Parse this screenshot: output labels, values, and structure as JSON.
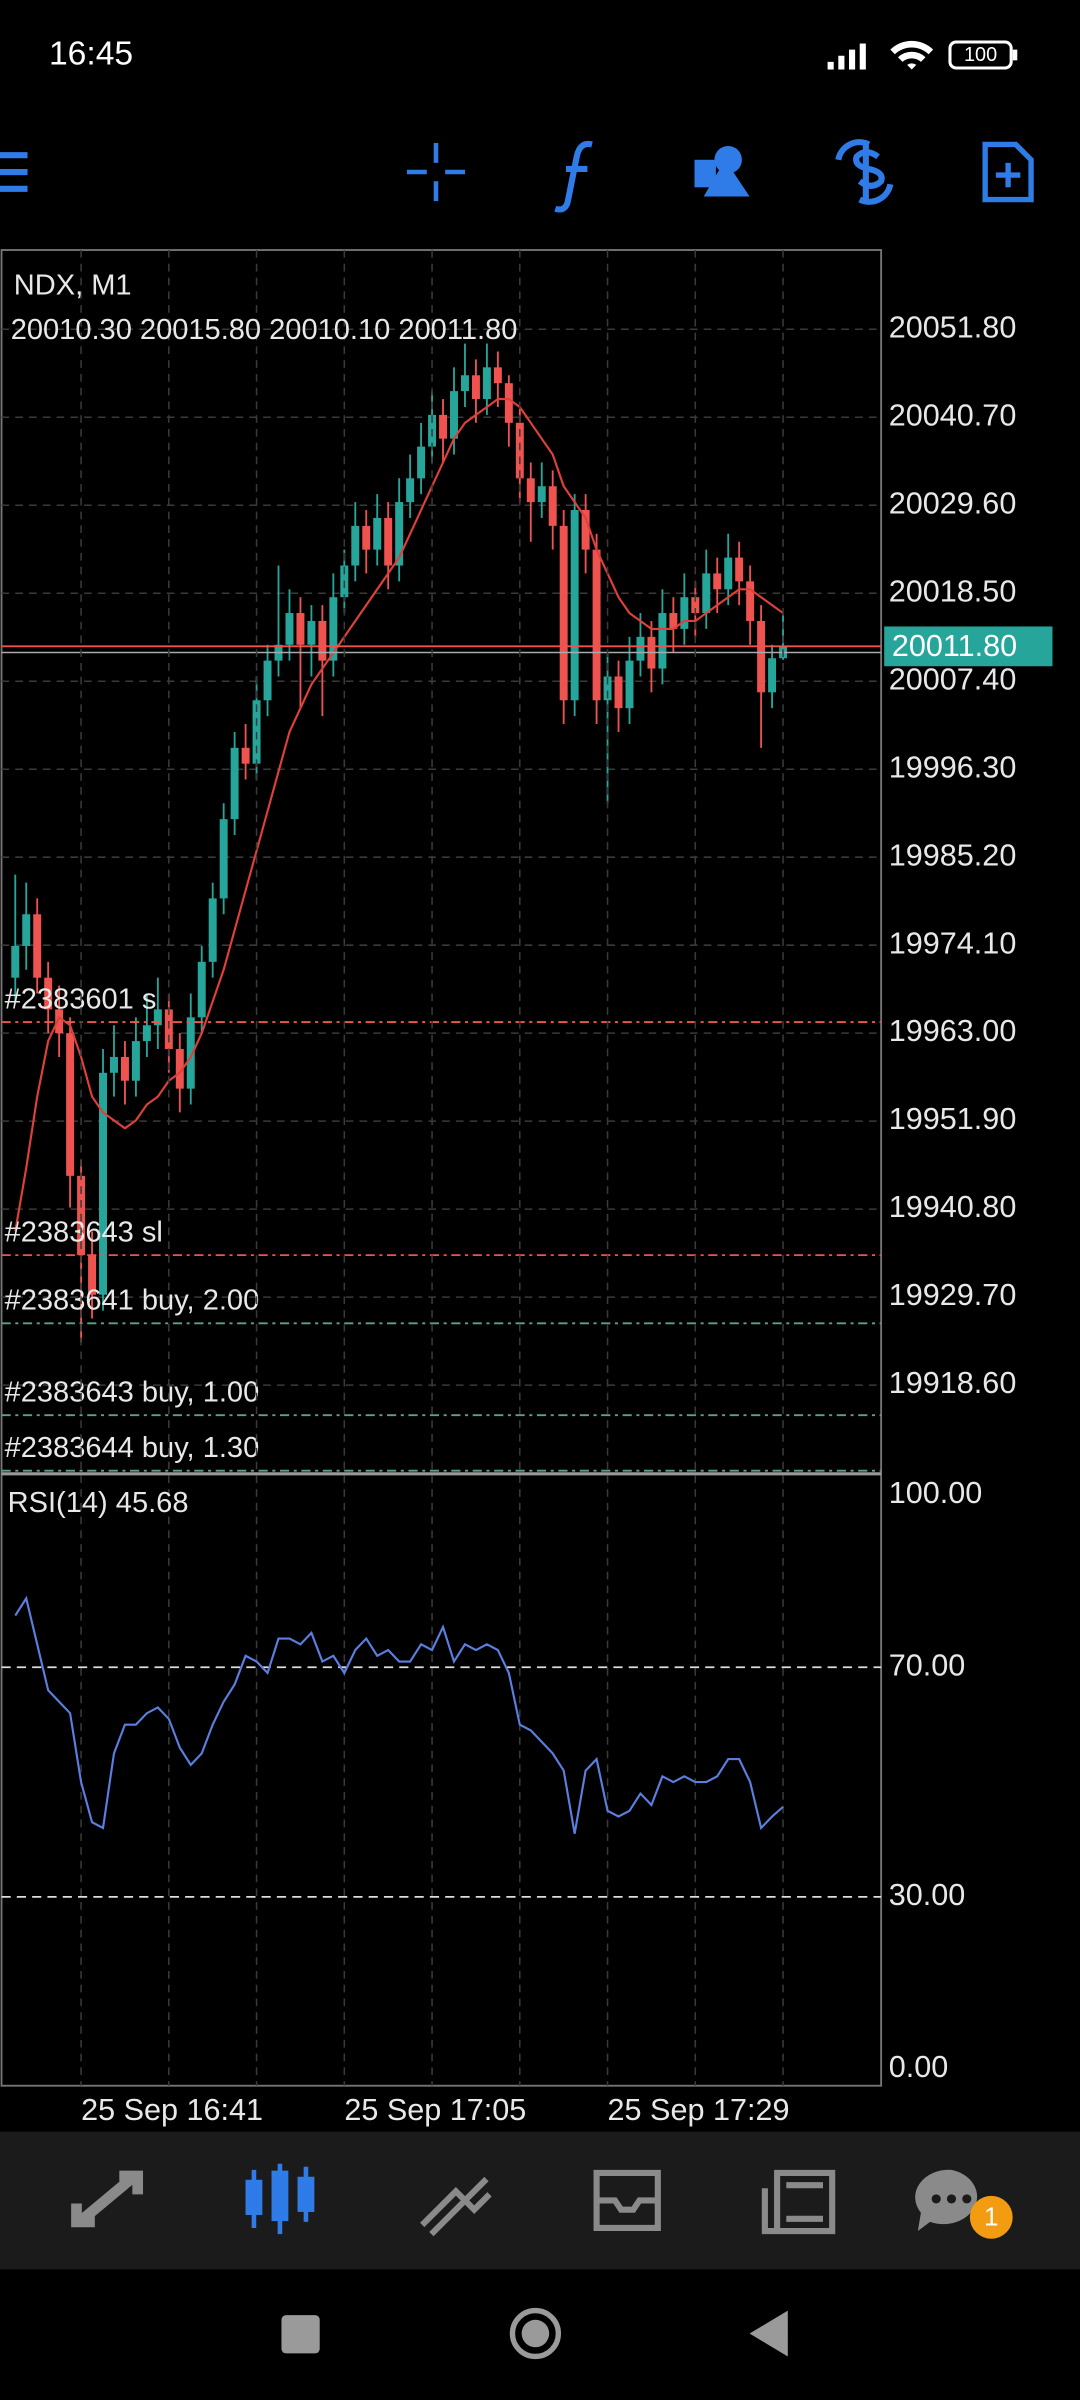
{
  "status_bar": {
    "time": "16:45",
    "battery": "100"
  },
  "chart_data": [
    {
      "type": "candlestick",
      "title": "NDX, M1",
      "subtitle": "20010.30 20015.80 20010.10 20011.80",
      "up_color": "#26a69a",
      "down_color": "#ef5350",
      "grid": true,
      "categories": [
        null,
        null,
        null,
        null,
        null,
        null,
        "25 Sep 16:41",
        null,
        null,
        null,
        null,
        null,
        null,
        null,
        null,
        null,
        null,
        null,
        null,
        null,
        null,
        null,
        null,
        null,
        null,
        null,
        null,
        null,
        null,
        null,
        "25 Sep 17:05",
        null,
        null,
        null,
        null,
        null,
        null,
        null,
        null,
        null,
        null,
        null,
        null,
        null,
        null,
        null,
        null,
        null,
        null,
        null,
        null,
        null,
        null,
        null,
        "25 Sep 17:29",
        null,
        null,
        null,
        null,
        null,
        null,
        null,
        null,
        null,
        null,
        null,
        null,
        null,
        null,
        null,
        null
      ],
      "candles": [
        [
          19970,
          19983,
          19967,
          19974
        ],
        [
          19974,
          19982,
          19971,
          19978
        ],
        [
          19978,
          19980,
          19968,
          19970
        ],
        [
          19970,
          19972,
          19963,
          19966
        ],
        [
          19966,
          19969,
          19960,
          19963
        ],
        [
          19963,
          19965,
          19941,
          19945
        ],
        [
          19945,
          19947,
          19924,
          19935
        ],
        [
          19935,
          19938,
          19927,
          19930
        ],
        [
          19930,
          19961,
          19928,
          19958
        ],
        [
          19958,
          19964,
          19955,
          19960
        ],
        [
          19960,
          19962,
          19954,
          19957
        ],
        [
          19957,
          19965,
          19955,
          19962
        ],
        [
          19962,
          19968,
          19960,
          19964
        ],
        [
          19964,
          19970,
          19961,
          19966
        ],
        [
          19966,
          19968,
          19958,
          19961
        ],
        [
          19961,
          19963,
          19953,
          19956
        ],
        [
          19956,
          19968,
          19954,
          19965
        ],
        [
          19965,
          19974,
          19963,
          19972
        ],
        [
          19972,
          19982,
          19970,
          19980
        ],
        [
          19980,
          19992,
          19978,
          19990
        ],
        [
          19990,
          20001,
          19988,
          19999
        ],
        [
          19999,
          20002,
          19995,
          19997
        ],
        [
          19997,
          20008,
          19995,
          20005
        ],
        [
          20005,
          20012,
          20003,
          20010
        ],
        [
          20010,
          20022,
          20008,
          20012
        ],
        [
          20012,
          20019,
          20010,
          20016
        ],
        [
          20016,
          20018,
          20004,
          20012
        ],
        [
          20012,
          20017,
          20008,
          20015
        ],
        [
          20015,
          20017,
          20003,
          20010
        ],
        [
          20010,
          20021,
          20008,
          20018
        ],
        [
          20018,
          20024,
          20016,
          20022
        ],
        [
          20022,
          20030,
          20020,
          20027
        ],
        [
          20027,
          20029,
          20021,
          20024
        ],
        [
          20024,
          20031,
          20022,
          20028
        ],
        [
          20028,
          20030,
          20019,
          20022
        ],
        [
          20022,
          20033,
          20020,
          20030
        ],
        [
          20030,
          20036,
          20028,
          20033
        ],
        [
          20033,
          20040,
          20031,
          20037
        ],
        [
          20037,
          20044,
          20035,
          20041
        ],
        [
          20041,
          20043,
          20035,
          20038
        ],
        [
          20038,
          20047,
          20036,
          20044
        ],
        [
          20044,
          20050,
          20042,
          20046
        ],
        [
          20046,
          20048,
          20040,
          20043
        ],
        [
          20043,
          20050,
          20041,
          20047
        ],
        [
          20047,
          20049,
          20042,
          20045
        ],
        [
          20045,
          20046,
          20037,
          20040
        ],
        [
          20040,
          20042,
          20030,
          20033
        ],
        [
          20033,
          20035,
          20025,
          20030
        ],
        [
          20030,
          20035,
          20028,
          20032
        ],
        [
          20032,
          20034,
          20024,
          20027
        ],
        [
          20027,
          20029,
          20002,
          20005
        ],
        [
          20005,
          20031,
          20003,
          20029
        ],
        [
          20029,
          20031,
          20021,
          20024
        ],
        [
          20024,
          20026,
          20002,
          20005
        ],
        [
          20005,
          20011,
          19992,
          20008
        ],
        [
          20008,
          20010,
          20001,
          20004
        ],
        [
          20004,
          20013,
          20002,
          20010
        ],
        [
          20010,
          20016,
          20008,
          20013
        ],
        [
          20013,
          20015,
          20006,
          20009
        ],
        [
          20009,
          20019,
          20007,
          20016
        ],
        [
          20016,
          20018,
          20011,
          20014
        ],
        [
          20014,
          20021,
          20012,
          20018
        ],
        [
          20018,
          20020,
          20013,
          20016
        ],
        [
          20016,
          20024,
          20014,
          20021
        ],
        [
          20021,
          20023,
          20016,
          20019
        ],
        [
          20019,
          20026,
          20017,
          20023
        ],
        [
          20023,
          20025,
          20017,
          20020
        ],
        [
          20020,
          20022,
          20012,
          20015
        ],
        [
          20015,
          20017,
          19999,
          20006
        ],
        [
          20006,
          20012,
          20004,
          20010.3
        ],
        [
          20010.3,
          20015.8,
          20010.1,
          20011.8
        ]
      ],
      "ma": {
        "color": "#e0403a",
        "values": [
          19938,
          19946,
          19955,
          19962,
          19965,
          19964,
          19960,
          19955,
          19953,
          19952,
          19951,
          19952,
          19954,
          19955,
          19957,
          19958,
          19960,
          19963,
          19967,
          19971,
          19976,
          19981,
          19986,
          19991,
          19996,
          20001,
          20004,
          20007,
          20009,
          20011,
          20013,
          20015,
          20017,
          20019,
          20021,
          20023,
          20026,
          20029,
          20032,
          20035,
          20038,
          20040,
          20041,
          20042,
          20043,
          20043,
          20042,
          20040,
          20038,
          20036,
          20032,
          20030,
          20028,
          20024,
          20021,
          20018,
          20016,
          20015,
          20014,
          20014,
          20014,
          20015,
          20015,
          20016,
          20017,
          20018,
          20019,
          20019,
          20018,
          20017,
          20016
        ]
      },
      "current_price": {
        "value": 20011.8,
        "label": "20011.80",
        "color": "#ef5350",
        "box_color": "#26a69a"
      },
      "levels": [
        {
          "label": "#2383601 s",
          "value": 19964.4,
          "color": "#ef5350"
        },
        {
          "label": "#2383643 sl",
          "value": 19935.0,
          "color": "#ef5350"
        },
        {
          "label": "#2383641 buy, 2.00",
          "value": 19926.4,
          "color": "#5fa08a"
        },
        {
          "label": "#2383643 buy, 1.00",
          "value": 19914.8,
          "color": "#5fa08a"
        },
        {
          "label": "#2383644 buy, 1.30",
          "value": 19907.8,
          "color": "#5fa08a"
        }
      ],
      "ylim": [
        19907.6,
        20061.8
      ],
      "yticks": [
        {
          "value": 20051.8,
          "label": "20051.80"
        },
        {
          "value": 20040.7,
          "label": "20040.70"
        },
        {
          "value": 20029.6,
          "label": "20029.60"
        },
        {
          "value": 20018.5,
          "label": "20018.50"
        },
        {
          "value": 20007.4,
          "label": "20007.40"
        },
        {
          "value": 19996.3,
          "label": "19996.30"
        },
        {
          "value": 19985.2,
          "label": "19985.20"
        },
        {
          "value": 19974.1,
          "label": "19974.10"
        },
        {
          "value": 19963,
          "label": "19963.00"
        },
        {
          "value": 19951.9,
          "label": "19951.90"
        },
        {
          "value": 19940.8,
          "label": "19940.80"
        },
        {
          "value": 19929.7,
          "label": "19929.70"
        },
        {
          "value": 19918.6,
          "label": "19918.60"
        }
      ]
    },
    {
      "type": "line",
      "title": "RSI(14) 45.68",
      "color": "#5b7fe0",
      "values": [
        79,
        82,
        74,
        66,
        64,
        62,
        50,
        43,
        42,
        55,
        60,
        60,
        62,
        63,
        61,
        56,
        53,
        55,
        60,
        64,
        67,
        72,
        71,
        69,
        75,
        75,
        74,
        76,
        71,
        72,
        69,
        73,
        75,
        72,
        73,
        71,
        71,
        74,
        73,
        77,
        71,
        74,
        73,
        74,
        73,
        69,
        60,
        59,
        57,
        55,
        52,
        41,
        52,
        54,
        45,
        44,
        45,
        48,
        46,
        51,
        50,
        51,
        50,
        50,
        51,
        54,
        54,
        50,
        42,
        44,
        45.68
      ],
      "ylim": [
        -2.9,
        103.7
      ],
      "yticks": [
        {
          "value": 100,
          "label": "100.00"
        },
        {
          "value": 70,
          "label": "70.00"
        },
        {
          "value": 30,
          "label": "30.00"
        },
        {
          "value": 0,
          "label": "0.00"
        }
      ],
      "levels": [
        70,
        30
      ]
    }
  ],
  "bottom_nav": {
    "badge": "1"
  }
}
